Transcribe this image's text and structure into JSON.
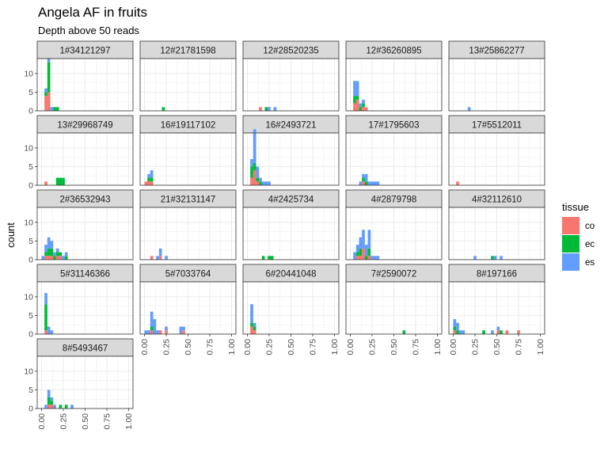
{
  "chart_data": {
    "type": "bar",
    "title": "Angela AF in fruits",
    "subtitle": "Depth above 50 reads",
    "xlabel": "",
    "ylabel": "count",
    "xlim": [
      0,
      1
    ],
    "ylim": [
      0,
      14
    ],
    "x_ticks": [
      0,
      0.25,
      0.5,
      0.75,
      1
    ],
    "x_tick_labels": [
      "0.00",
      "0.25",
      "0.50",
      "0.75",
      "1.00"
    ],
    "y_ticks": [
      0,
      5,
      10
    ],
    "y_tick_labels": [
      "0",
      "5",
      "10"
    ],
    "bin_width": 0.0333,
    "grid": true,
    "stacked": true,
    "legend": {
      "title": "tissue",
      "position": "right",
      "entries": [
        {
          "name": "co",
          "color": "#F8766D"
        },
        {
          "name": "ec",
          "color": "#00BA38"
        },
        {
          "name": "es",
          "color": "#619CFF"
        }
      ]
    },
    "panels": [
      {
        "label": "1#34121297",
        "bins": [
          [
            0.05,
            4,
            1,
            1
          ],
          [
            0.083,
            5,
            8,
            1
          ],
          [
            0.117,
            0,
            0,
            1
          ],
          [
            0.15,
            0,
            1,
            0
          ],
          [
            0.183,
            0,
            1,
            0
          ]
        ]
      },
      {
        "label": "12#21781598",
        "bins": [
          [
            0.217,
            0,
            1,
            0
          ]
        ]
      },
      {
        "label": "12#28520235",
        "bins": [
          [
            0.15,
            1,
            0,
            0
          ],
          [
            0.217,
            0,
            1,
            0
          ],
          [
            0.25,
            0,
            0,
            1
          ],
          [
            0.317,
            0,
            0,
            1
          ]
        ]
      },
      {
        "label": "12#36260895",
        "bins": [
          [
            0.05,
            2,
            2,
            4
          ],
          [
            0.083,
            3,
            1,
            4
          ],
          [
            0.117,
            0,
            1,
            1
          ],
          [
            0.15,
            1,
            1,
            1
          ],
          [
            0.183,
            1,
            0,
            0
          ]
        ]
      },
      {
        "label": "13#25862277",
        "bins": [
          [
            0.183,
            0,
            0,
            1
          ]
        ]
      },
      {
        "label": "13#29968749",
        "bins": [
          [
            0.05,
            1,
            0,
            0
          ],
          [
            0.183,
            0,
            2,
            0
          ],
          [
            0.217,
            0,
            2,
            0
          ],
          [
            0.25,
            0,
            2,
            0
          ]
        ]
      },
      {
        "label": "16#19117102",
        "bins": [
          [
            0.017,
            1,
            0,
            0
          ],
          [
            0.05,
            1,
            1,
            1
          ],
          [
            0.083,
            1,
            1,
            2
          ]
        ]
      },
      {
        "label": "16#2493721",
        "bins": [
          [
            0.05,
            2,
            3,
            2
          ],
          [
            0.083,
            4,
            2,
            9
          ],
          [
            0.117,
            1,
            1,
            3
          ],
          [
            0.15,
            0,
            1,
            1
          ],
          [
            0.183,
            0,
            0,
            1
          ],
          [
            0.217,
            0,
            0,
            1
          ],
          [
            0.25,
            0,
            0,
            1
          ]
        ]
      },
      {
        "label": "17#1795603",
        "bins": [
          [
            0.117,
            0,
            0,
            1
          ],
          [
            0.15,
            1,
            1,
            1
          ],
          [
            0.183,
            0,
            1,
            2
          ],
          [
            0.217,
            0,
            0,
            1
          ],
          [
            0.25,
            0,
            0,
            1
          ],
          [
            0.283,
            0,
            0,
            1
          ],
          [
            0.317,
            0,
            0,
            1
          ]
        ]
      },
      {
        "label": "17#5512011",
        "bins": [
          [
            0.05,
            1,
            0,
            0
          ]
        ]
      },
      {
        "label": "2#36532943",
        "bins": [
          [
            0.017,
            0,
            0,
            1
          ],
          [
            0.05,
            1,
            1,
            2
          ],
          [
            0.083,
            1,
            2,
            3
          ],
          [
            0.117,
            1,
            2,
            2
          ],
          [
            0.15,
            0,
            1,
            1
          ],
          [
            0.183,
            1,
            1,
            1
          ],
          [
            0.217,
            1,
            1,
            0
          ],
          [
            0.25,
            0,
            0,
            1
          ],
          [
            0.283,
            0,
            1,
            1
          ]
        ]
      },
      {
        "label": "21#32131147",
        "bins": [
          [
            0.083,
            1,
            0,
            0
          ],
          [
            0.15,
            0,
            0,
            1
          ],
          [
            0.183,
            1,
            0,
            2
          ],
          [
            0.25,
            0,
            0,
            1
          ]
        ]
      },
      {
        "label": "4#2425734",
        "bins": [
          [
            0.183,
            0,
            1,
            0
          ],
          [
            0.25,
            0,
            1,
            0
          ],
          [
            0.283,
            0,
            1,
            0
          ]
        ]
      },
      {
        "label": "4#2879798",
        "bins": [
          [
            0.05,
            0,
            0,
            2
          ],
          [
            0.083,
            1,
            1,
            2
          ],
          [
            0.117,
            1,
            2,
            3
          ],
          [
            0.15,
            3,
            0,
            5
          ],
          [
            0.183,
            0,
            1,
            3
          ],
          [
            0.217,
            1,
            2,
            5
          ],
          [
            0.25,
            0,
            0,
            1
          ],
          [
            0.283,
            0,
            0,
            1
          ],
          [
            0.317,
            0,
            0,
            1
          ]
        ]
      },
      {
        "label": "4#32112610",
        "bins": [
          [
            0.25,
            0,
            0,
            1
          ],
          [
            0.45,
            0,
            1,
            0
          ],
          [
            0.483,
            0,
            0,
            1
          ],
          [
            0.55,
            0,
            0,
            1
          ]
        ]
      },
      {
        "label": "5#31146366",
        "bins": [
          [
            0.05,
            1,
            7,
            3
          ],
          [
            0.083,
            0,
            0,
            2
          ],
          [
            0.117,
            0,
            0,
            1
          ]
        ]
      },
      {
        "label": "5#7033764",
        "bins": [
          [
            0.017,
            0,
            0,
            1
          ],
          [
            0.05,
            0,
            0,
            1
          ],
          [
            0.083,
            1,
            1,
            4
          ],
          [
            0.117,
            0,
            0,
            4
          ],
          [
            0.15,
            0,
            0,
            1
          ],
          [
            0.183,
            1,
            0,
            0
          ],
          [
            0.25,
            1,
            0,
            1
          ],
          [
            0.417,
            0,
            0,
            2
          ],
          [
            0.45,
            1,
            0,
            1
          ]
        ]
      },
      {
        "label": "6#20441048",
        "bins": [
          [
            0.05,
            2,
            1,
            5
          ],
          [
            0.083,
            1,
            1,
            1
          ]
        ]
      },
      {
        "label": "7#2590072",
        "bins": [
          [
            0.617,
            0,
            1,
            0
          ]
        ]
      },
      {
        "label": "8#197166",
        "bins": [
          [
            0.017,
            1,
            1,
            2
          ],
          [
            0.05,
            0,
            1,
            2
          ],
          [
            0.083,
            0,
            0,
            1
          ],
          [
            0.117,
            0,
            0,
            1
          ],
          [
            0.35,
            0,
            1,
            0
          ],
          [
            0.45,
            0,
            0,
            1
          ],
          [
            0.517,
            1,
            0,
            1
          ],
          [
            0.55,
            0,
            1,
            0
          ],
          [
            0.617,
            1,
            0,
            0
          ],
          [
            0.75,
            1,
            0,
            0
          ]
        ]
      },
      {
        "label": "8#5493467",
        "bins": [
          [
            0.05,
            0,
            0,
            1
          ],
          [
            0.083,
            1,
            2,
            2
          ],
          [
            0.117,
            1,
            1,
            1
          ],
          [
            0.15,
            0,
            0,
            1
          ],
          [
            0.217,
            0,
            1,
            0
          ],
          [
            0.283,
            0,
            1,
            0
          ],
          [
            0.35,
            0,
            0,
            1
          ]
        ]
      }
    ]
  }
}
